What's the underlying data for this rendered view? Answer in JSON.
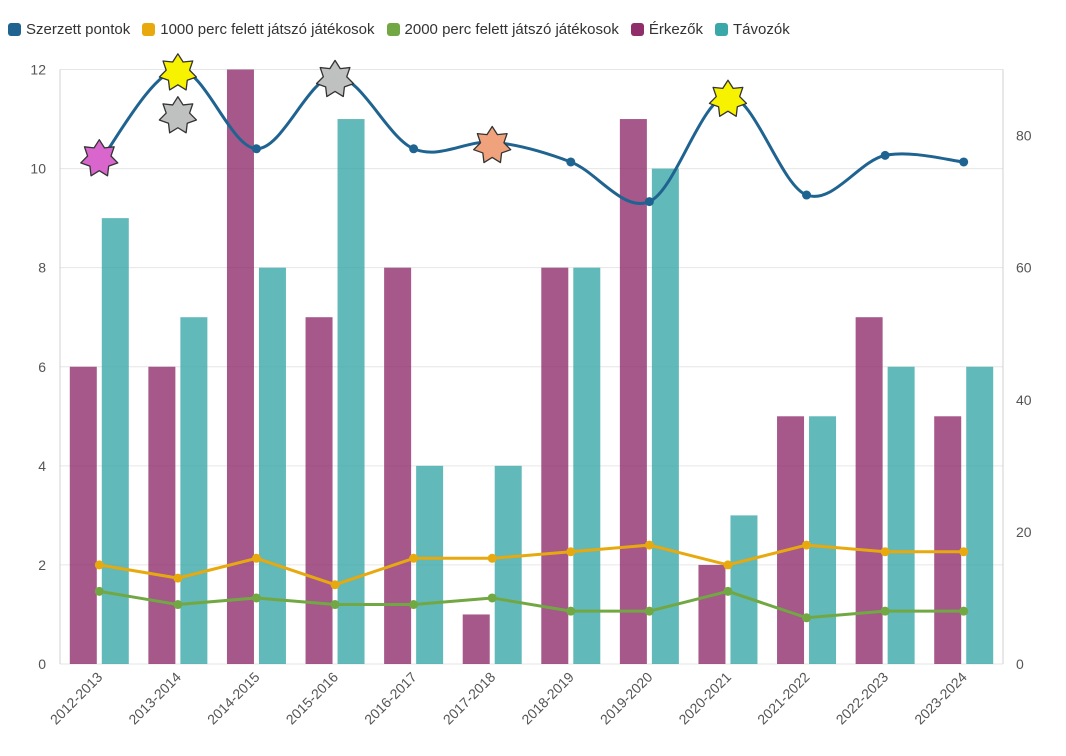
{
  "chart_data": {
    "type": "bar",
    "title": "",
    "categories": [
      "2012-2013",
      "2013-2014",
      "2014-2015",
      "2015-2016",
      "2016-2017",
      "2017-2018",
      "2018-2019",
      "2019-2020",
      "2020-2021",
      "2021-2022",
      "2022-2023",
      "2023-2024"
    ],
    "left_axis": {
      "ylim": [
        0,
        12
      ],
      "ticks": [
        0,
        2,
        4,
        6,
        8,
        10,
        12
      ],
      "grid": true
    },
    "right_axis": {
      "ylim": [
        0,
        90
      ],
      "ticks": [
        0,
        20,
        40,
        60,
        80
      ]
    },
    "series": [
      {
        "name": "Szerzett pontok",
        "kind": "line",
        "axis": "right",
        "smooth": true,
        "color": "#1f6391",
        "values": [
          76,
          90,
          78,
          89,
          78,
          79,
          76,
          70,
          86,
          71,
          77,
          76
        ]
      },
      {
        "name": "1000 perc felett játszó játékosok",
        "kind": "line",
        "axis": "right",
        "color": "#e8a90e",
        "values": [
          15,
          13,
          16,
          12,
          16,
          16,
          17,
          18,
          15,
          18,
          17,
          17
        ]
      },
      {
        "name": "2000 perc felett játszó játékosok",
        "kind": "line",
        "axis": "right",
        "color": "#72a843",
        "values": [
          11,
          9,
          10,
          9,
          9,
          10,
          8,
          8,
          11,
          7,
          8,
          8
        ]
      },
      {
        "name": "Érkezők",
        "kind": "bar",
        "axis": "left",
        "color": "#8f2e6b",
        "values": [
          6,
          6,
          12,
          7,
          8,
          1,
          8,
          11,
          2,
          5,
          7,
          5
        ]
      },
      {
        "name": "Távozók",
        "kind": "bar",
        "axis": "left",
        "color": "#3aa8a8",
        "values": [
          9,
          7,
          8,
          11,
          4,
          4,
          8,
          10,
          3,
          5,
          6,
          6
        ]
      }
    ],
    "annotations": [
      {
        "category": "2012-2013",
        "value": 76.5,
        "axis": "right",
        "marker": "star",
        "color": "#d966cc"
      },
      {
        "category": "2013-2014",
        "value": 89.5,
        "axis": "right",
        "marker": "star",
        "color": "#f7f200"
      },
      {
        "category": "2013-2014",
        "value": 83,
        "axis": "right",
        "marker": "star",
        "color": "#bfc0c0"
      },
      {
        "category": "2015-2016",
        "value": 88.5,
        "axis": "right",
        "marker": "star",
        "color": "#bfc0c0"
      },
      {
        "category": "2017-2018",
        "value": 78.5,
        "axis": "right",
        "marker": "star",
        "color": "#f0a27c"
      },
      {
        "category": "2020-2021",
        "value": 85.5,
        "axis": "right",
        "marker": "star",
        "color": "#f7f200"
      }
    ]
  }
}
